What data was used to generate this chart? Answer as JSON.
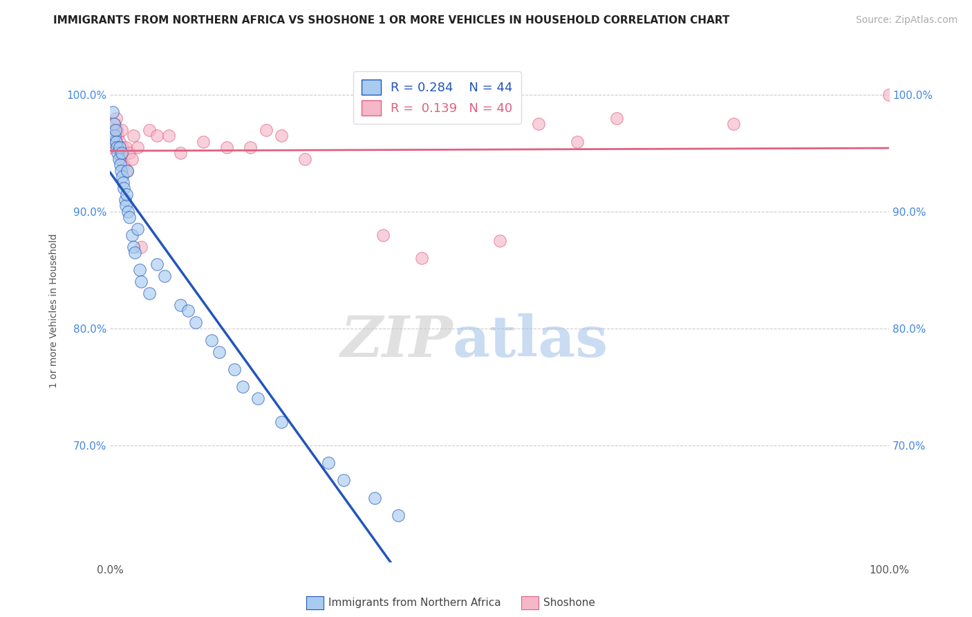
{
  "title": "IMMIGRANTS FROM NORTHERN AFRICA VS SHOSHONE 1 OR MORE VEHICLES IN HOUSEHOLD CORRELATION CHART",
  "source": "Source: ZipAtlas.com",
  "ylabel": "1 or more Vehicles in Household",
  "legend_label1": "Immigrants from Northern Africa",
  "legend_label2": "Shoshone",
  "R1": 0.284,
  "N1": 44,
  "R2": 0.139,
  "N2": 40,
  "xlim": [
    0.0,
    100.0
  ],
  "ylim": [
    60.0,
    103.0
  ],
  "yticks": [
    70.0,
    80.0,
    90.0,
    100.0
  ],
  "xticks": [
    0.0,
    100.0
  ],
  "xticklabels": [
    "0.0%",
    "100.0%"
  ],
  "yticklabels": [
    "70.0%",
    "80.0%",
    "90.0%",
    "100.0%"
  ],
  "color_blue": "#A8CCF0",
  "color_pink": "#F4B8C8",
  "color_blue_line": "#2255BB",
  "color_pink_line": "#E06080",
  "blue_x": [
    0.3,
    0.4,
    0.5,
    0.6,
    0.7,
    0.8,
    0.9,
    1.0,
    1.1,
    1.2,
    1.3,
    1.4,
    1.5,
    1.6,
    1.7,
    1.8,
    1.9,
    2.0,
    2.1,
    2.2,
    2.3,
    2.5,
    2.8,
    3.0,
    3.2,
    3.5,
    3.8,
    4.0,
    5.0,
    6.0,
    7.0,
    9.0,
    10.0,
    11.0,
    13.0,
    14.0,
    16.0,
    17.0,
    19.0,
    22.0,
    28.0,
    30.0,
    34.0,
    37.0
  ],
  "blue_y": [
    98.5,
    96.0,
    97.5,
    96.5,
    97.0,
    96.0,
    95.5,
    95.0,
    94.5,
    95.5,
    94.0,
    93.5,
    95.0,
    93.0,
    92.5,
    92.0,
    91.0,
    90.5,
    91.5,
    93.5,
    90.0,
    89.5,
    88.0,
    87.0,
    86.5,
    88.5,
    85.0,
    84.0,
    83.0,
    85.5,
    84.5,
    82.0,
    81.5,
    80.5,
    79.0,
    78.0,
    76.5,
    75.0,
    74.0,
    72.0,
    68.5,
    67.0,
    65.5,
    64.0
  ],
  "pink_x": [
    0.2,
    0.4,
    0.5,
    0.6,
    0.7,
    0.8,
    0.9,
    1.0,
    1.1,
    1.2,
    1.3,
    1.4,
    1.5,
    1.6,
    1.8,
    2.0,
    2.2,
    2.5,
    2.8,
    3.0,
    3.5,
    4.0,
    5.0,
    6.0,
    7.5,
    9.0,
    12.0,
    15.0,
    18.0,
    20.0,
    22.0,
    25.0,
    35.0,
    40.0,
    50.0,
    55.0,
    60.0,
    65.0,
    80.0,
    100.0
  ],
  "pink_y": [
    95.5,
    97.0,
    96.5,
    97.5,
    96.0,
    98.0,
    97.0,
    96.5,
    95.5,
    96.0,
    95.0,
    94.5,
    97.0,
    95.5,
    94.0,
    95.5,
    93.5,
    95.0,
    94.5,
    96.5,
    95.5,
    87.0,
    97.0,
    96.5,
    96.5,
    95.0,
    96.0,
    95.5,
    95.5,
    97.0,
    96.5,
    94.5,
    88.0,
    86.0,
    87.5,
    97.5,
    96.0,
    98.0,
    97.5,
    100.0
  ],
  "watermark_zip": "ZIP",
  "watermark_atlas": "atlas",
  "background_color": "#FFFFFF",
  "grid_color": "#CCCCCC",
  "title_fontsize": 11,
  "source_fontsize": 10,
  "tick_fontsize": 11,
  "ylabel_fontsize": 10
}
